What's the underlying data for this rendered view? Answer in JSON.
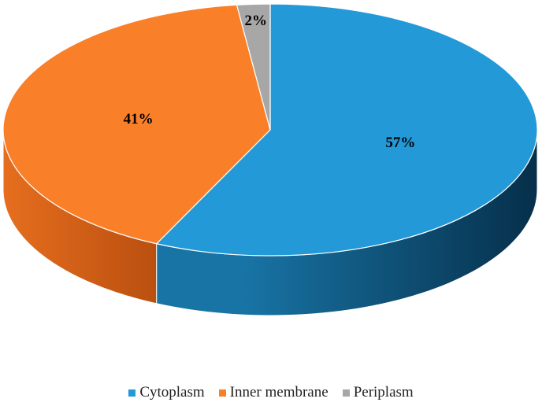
{
  "chart_data": {
    "type": "pie",
    "style": "3d",
    "slices": [
      {
        "label": "Cytoplasm",
        "value": 57,
        "value_label": "57%",
        "color": "#2399D7",
        "side_dark": "#062F4A",
        "side_light": "#1874A5"
      },
      {
        "label": "Inner membrane",
        "value": 41,
        "value_label": "41%",
        "color": "#FA7F29",
        "side_dark": "#B84E0F",
        "side_light": "#E66E1E"
      },
      {
        "label": "Periplasm",
        "value": 2,
        "value_label": "2%",
        "color": "#A7A7A7",
        "side_dark": "#6E6E6E",
        "side_light": "#9A9A9A"
      }
    ],
    "legend_position": "bottom"
  }
}
